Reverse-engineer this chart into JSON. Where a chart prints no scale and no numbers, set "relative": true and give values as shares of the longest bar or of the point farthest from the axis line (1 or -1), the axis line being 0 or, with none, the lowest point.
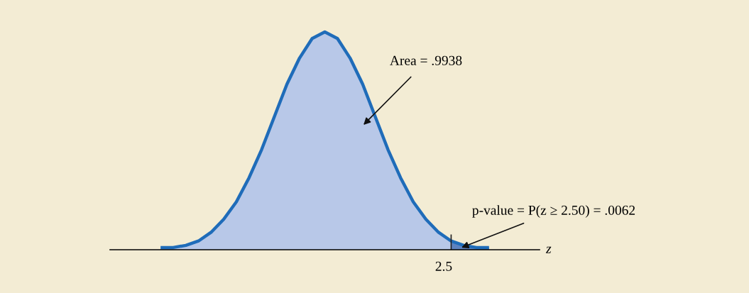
{
  "chart_data": {
    "type": "area",
    "relative": true,
    "xlabel": "z",
    "categories": [
      null,
      null,
      null,
      null,
      null,
      null,
      null,
      null,
      null,
      null,
      null,
      null,
      null,
      null,
      null,
      null,
      null,
      null,
      null,
      null,
      null,
      null,
      null,
      null,
      null,
      null,
      null
    ],
    "series": [
      {
        "color": "#b8c8e8",
        "values": [
          0.01,
          0.01,
          0.02,
          0.04,
          0.08,
          0.14,
          0.22,
          0.33,
          0.46,
          0.61,
          0.76,
          0.88,
          0.97,
          1,
          0.97,
          0.88,
          0.76,
          0.61,
          0.46,
          0.33,
          0.22,
          0.14,
          0.08,
          0.04,
          null,
          null,
          null
        ]
      },
      {
        "color": "#5d82bf",
        "values": [
          null,
          null,
          null,
          null,
          null,
          null,
          null,
          null,
          null,
          null,
          null,
          null,
          null,
          null,
          null,
          null,
          null,
          null,
          null,
          null,
          null,
          null,
          null,
          0.04,
          0.02,
          0.01,
          0.01
        ]
      },
      {
        "type": "line",
        "color": "#1f6cb9",
        "values": [
          0.01,
          0.01,
          0.02,
          0.04,
          0.08,
          0.14,
          0.22,
          0.33,
          0.46,
          0.61,
          0.76,
          0.88,
          0.97,
          1,
          0.97,
          0.88,
          0.76,
          0.61,
          0.46,
          0.33,
          0.22,
          0.14,
          0.08,
          0.04,
          0.02,
          0.01,
          0.01
        ]
      }
    ],
    "annotations": [
      "Area = .9938",
      "p-value = P(z ≥ 2.50) = .0062",
      "2.5"
    ]
  }
}
